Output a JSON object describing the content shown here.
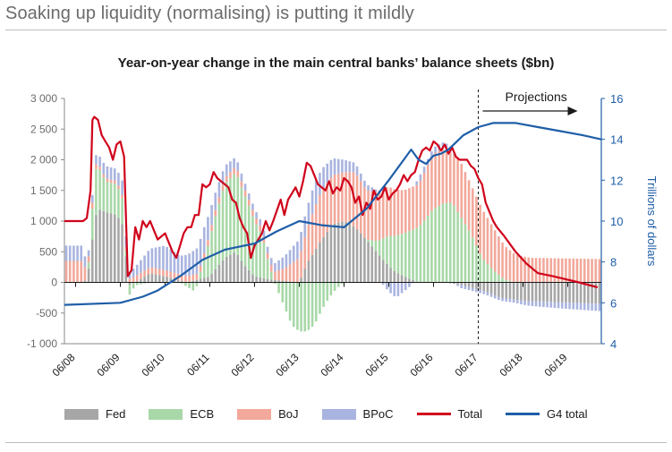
{
  "header": {
    "headline": "Soaking up liquidity (normalising) is putting it mildly"
  },
  "chart_data": {
    "type": "bar",
    "title": "Year-on-year change in the main central banks’ balance sheets ($bn)",
    "annotation": "Projections",
    "y_left": {
      "ticks": [
        -1000,
        -500,
        0,
        500,
        1000,
        1500,
        2000,
        2500,
        3000
      ],
      "tick_labels": [
        "-1 000",
        "-500",
        "0",
        "500",
        "1 000",
        "1 500",
        "2 000",
        "2 500",
        "3 000"
      ],
      "range": [
        -1000,
        3000
      ]
    },
    "y_right": {
      "label": "Trillions of dollars",
      "ticks": [
        4,
        6,
        8,
        10,
        12,
        14,
        16
      ],
      "tick_labels": [
        "4",
        "6",
        "8",
        "10",
        "12",
        "14",
        "16"
      ],
      "range": [
        4,
        16
      ]
    },
    "x_ticks": [
      "06/08",
      "06/09",
      "06/10",
      "06/11",
      "06/12",
      "06/13",
      "06/14",
      "06/15",
      "06/16",
      "06/17",
      "06/18",
      "06/19"
    ],
    "projection_start": "06/17",
    "x_range_months": [
      -3,
      141
    ],
    "colors": {
      "Fed": "#a6a6a6",
      "ECB": "#a8d8a8",
      "BoJ": "#f2a89a",
      "BPoC": "#a9b4e0",
      "Total": "#d0021b",
      "G4 total": "#1f5ea8"
    },
    "legend": [
      {
        "name": "Fed",
        "kind": "bar"
      },
      {
        "name": "ECB",
        "kind": "bar"
      },
      {
        "name": "BoJ",
        "kind": "bar"
      },
      {
        "name": "BPoC",
        "kind": "bar"
      },
      {
        "name": "Total",
        "kind": "line"
      },
      {
        "name": "G4 total",
        "kind": "line"
      }
    ],
    "series_keypoints": {
      "Fed": [
        [
          -3,
          0
        ],
        [
          2,
          0
        ],
        [
          3,
          50
        ],
        [
          4,
          400
        ],
        [
          5,
          1000
        ],
        [
          6,
          1200
        ],
        [
          8,
          1150
        ],
        [
          11,
          1100
        ],
        [
          13,
          900
        ],
        [
          14,
          -50
        ],
        [
          16,
          0
        ],
        [
          20,
          150
        ],
        [
          24,
          100
        ],
        [
          30,
          0
        ],
        [
          36,
          100
        ],
        [
          40,
          400
        ],
        [
          43,
          500
        ],
        [
          45,
          300
        ],
        [
          48,
          100
        ],
        [
          52,
          50
        ],
        [
          60,
          0
        ],
        [
          62,
          300
        ],
        [
          66,
          700
        ],
        [
          69,
          950
        ],
        [
          72,
          1000
        ],
        [
          75,
          900
        ],
        [
          78,
          700
        ],
        [
          82,
          400
        ],
        [
          85,
          200
        ],
        [
          88,
          100
        ],
        [
          92,
          0
        ],
        [
          99,
          0
        ],
        [
          104,
          -50
        ],
        [
          110,
          -150
        ],
        [
          114,
          -250
        ],
        [
          120,
          -300
        ],
        [
          141,
          -350
        ]
      ],
      "ECB": [
        [
          -3,
          0
        ],
        [
          2,
          0
        ],
        [
          3,
          0
        ],
        [
          4,
          200
        ],
        [
          5,
          800
        ],
        [
          6,
          700
        ],
        [
          8,
          500
        ],
        [
          11,
          500
        ],
        [
          13,
          400
        ],
        [
          14,
          -200
        ],
        [
          16,
          -50
        ],
        [
          20,
          0
        ],
        [
          24,
          0
        ],
        [
          28,
          0
        ],
        [
          32,
          -150
        ],
        [
          34,
          200
        ],
        [
          37,
          800
        ],
        [
          40,
          1200
        ],
        [
          43,
          1300
        ],
        [
          46,
          1100
        ],
        [
          50,
          700
        ],
        [
          52,
          200
        ],
        [
          54,
          -100
        ],
        [
          56,
          -400
        ],
        [
          58,
          -700
        ],
        [
          60,
          -800
        ],
        [
          62,
          -800
        ],
        [
          64,
          -700
        ],
        [
          66,
          -450
        ],
        [
          68,
          -250
        ],
        [
          70,
          -100
        ],
        [
          72,
          0
        ],
        [
          74,
          0
        ],
        [
          78,
          0
        ],
        [
          81,
          200
        ],
        [
          84,
          500
        ],
        [
          88,
          700
        ],
        [
          92,
          900
        ],
        [
          96,
          1200
        ],
        [
          99,
          1300
        ],
        [
          101,
          1300
        ],
        [
          103,
          1100
        ],
        [
          106,
          800
        ],
        [
          109,
          400
        ],
        [
          112,
          200
        ],
        [
          115,
          50
        ],
        [
          118,
          0
        ],
        [
          141,
          0
        ]
      ],
      "BoJ": [
        [
          -3,
          350
        ],
        [
          2,
          350
        ],
        [
          3,
          100
        ],
        [
          4,
          100
        ],
        [
          5,
          100
        ],
        [
          6,
          50
        ],
        [
          8,
          50
        ],
        [
          11,
          50
        ],
        [
          13,
          50
        ],
        [
          14,
          50
        ],
        [
          16,
          100
        ],
        [
          20,
          100
        ],
        [
          24,
          100
        ],
        [
          28,
          100
        ],
        [
          32,
          100
        ],
        [
          34,
          100
        ],
        [
          37,
          100
        ],
        [
          40,
          100
        ],
        [
          43,
          100
        ],
        [
          46,
          100
        ],
        [
          50,
          100
        ],
        [
          52,
          100
        ],
        [
          56,
          200
        ],
        [
          60,
          400
        ],
        [
          64,
          700
        ],
        [
          66,
          800
        ],
        [
          68,
          800
        ],
        [
          70,
          800
        ],
        [
          72,
          800
        ],
        [
          75,
          900
        ],
        [
          78,
          800
        ],
        [
          82,
          800
        ],
        [
          84,
          800
        ],
        [
          88,
          700
        ],
        [
          92,
          700
        ],
        [
          96,
          900
        ],
        [
          99,
          900
        ],
        [
          101,
          800
        ],
        [
          103,
          900
        ],
        [
          106,
          800
        ],
        [
          109,
          800
        ],
        [
          112,
          700
        ],
        [
          115,
          550
        ],
        [
          118,
          450
        ],
        [
          122,
          400
        ],
        [
          141,
          380
        ]
      ],
      "BPoC": [
        [
          -3,
          250
        ],
        [
          2,
          250
        ],
        [
          3,
          100
        ],
        [
          4,
          100
        ],
        [
          5,
          150
        ],
        [
          6,
          150
        ],
        [
          8,
          200
        ],
        [
          11,
          200
        ],
        [
          13,
          250
        ],
        [
          14,
          100
        ],
        [
          16,
          150
        ],
        [
          20,
          300
        ],
        [
          24,
          400
        ],
        [
          28,
          300
        ],
        [
          32,
          400
        ],
        [
          34,
          450
        ],
        [
          37,
          300
        ],
        [
          40,
          200
        ],
        [
          43,
          150
        ],
        [
          46,
          100
        ],
        [
          50,
          100
        ],
        [
          52,
          100
        ],
        [
          56,
          200
        ],
        [
          60,
          300
        ],
        [
          64,
          400
        ],
        [
          66,
          350
        ],
        [
          68,
          300
        ],
        [
          70,
          250
        ],
        [
          72,
          200
        ],
        [
          75,
          150
        ],
        [
          78,
          100
        ],
        [
          82,
          0
        ],
        [
          84,
          -150
        ],
        [
          86,
          -250
        ],
        [
          88,
          -150
        ],
        [
          90,
          -50
        ],
        [
          92,
          100
        ],
        [
          96,
          100
        ],
        [
          99,
          100
        ],
        [
          101,
          50
        ],
        [
          103,
          -50
        ],
        [
          106,
          -50
        ],
        [
          109,
          -50
        ],
        [
          112,
          -50
        ],
        [
          115,
          -50
        ],
        [
          118,
          -50
        ],
        [
          122,
          -80
        ],
        [
          130,
          -100
        ],
        [
          141,
          -120
        ]
      ],
      "Total": [
        [
          -3,
          1000
        ],
        [
          2,
          1000
        ],
        [
          3,
          1050
        ],
        [
          4,
          1500
        ],
        [
          4.5,
          2650
        ],
        [
          5,
          2700
        ],
        [
          6,
          2650
        ],
        [
          7,
          2400
        ],
        [
          8,
          2300
        ],
        [
          9,
          2200
        ],
        [
          10,
          2000
        ],
        [
          11,
          2250
        ],
        [
          12,
          2300
        ],
        [
          13,
          2050
        ],
        [
          14,
          100
        ],
        [
          15,
          200
        ],
        [
          16,
          900
        ],
        [
          17,
          700
        ],
        [
          18,
          1000
        ],
        [
          19,
          900
        ],
        [
          20,
          1000
        ],
        [
          21,
          850
        ],
        [
          22,
          700
        ],
        [
          24,
          800
        ],
        [
          26,
          500
        ],
        [
          27,
          400
        ],
        [
          28,
          600
        ],
        [
          29,
          800
        ],
        [
          30,
          900
        ],
        [
          31,
          900
        ],
        [
          32,
          1100
        ],
        [
          33,
          1100
        ],
        [
          34,
          1600
        ],
        [
          35,
          1550
        ],
        [
          36,
          1600
        ],
        [
          37,
          1800
        ],
        [
          38,
          1700
        ],
        [
          39,
          1650
        ],
        [
          40,
          1600
        ],
        [
          41,
          1550
        ],
        [
          42,
          1350
        ],
        [
          43,
          1300
        ],
        [
          44,
          1050
        ],
        [
          45,
          900
        ],
        [
          46,
          800
        ],
        [
          47,
          400
        ],
        [
          48,
          600
        ],
        [
          49,
          700
        ],
        [
          50,
          800
        ],
        [
          51,
          1000
        ],
        [
          52,
          850
        ],
        [
          53,
          1000
        ],
        [
          55,
          1350
        ],
        [
          56,
          1100
        ],
        [
          57,
          1350
        ],
        [
          58,
          1450
        ],
        [
          59,
          1550
        ],
        [
          60,
          1400
        ],
        [
          61,
          1650
        ],
        [
          62,
          1950
        ],
        [
          63,
          1900
        ],
        [
          64,
          1750
        ],
        [
          65,
          1600
        ],
        [
          66,
          1550
        ],
        [
          67,
          1500
        ],
        [
          68,
          1650
        ],
        [
          69,
          1450
        ],
        [
          70,
          1550
        ],
        [
          71,
          1500
        ],
        [
          72,
          1700
        ],
        [
          73,
          1650
        ],
        [
          74,
          1550
        ],
        [
          75,
          1300
        ],
        [
          76,
          1400
        ],
        [
          77,
          1100
        ],
        [
          78,
          1300
        ],
        [
          79,
          1200
        ],
        [
          80,
          1500
        ],
        [
          81,
          1350
        ],
        [
          82,
          1400
        ],
        [
          83,
          1550
        ],
        [
          84,
          1350
        ],
        [
          85,
          1450
        ],
        [
          86,
          1500
        ],
        [
          87,
          1600
        ],
        [
          88,
          1750
        ],
        [
          89,
          1650
        ],
        [
          90,
          1750
        ],
        [
          91,
          1800
        ],
        [
          92,
          2000
        ],
        [
          93,
          2150
        ],
        [
          94,
          2200
        ],
        [
          95,
          2150
        ],
        [
          96,
          2300
        ],
        [
          97,
          2250
        ],
        [
          98,
          2150
        ],
        [
          99,
          2250
        ],
        [
          100,
          2100
        ],
        [
          101,
          2200
        ],
        [
          102,
          2050
        ],
        [
          103,
          2000
        ],
        [
          104,
          2000
        ],
        [
          105,
          2000
        ],
        [
          106,
          1900
        ],
        [
          107,
          1850
        ],
        [
          108,
          1700
        ],
        [
          109,
          1600
        ],
        [
          110,
          1300
        ],
        [
          111,
          1150
        ],
        [
          112,
          1000
        ],
        [
          113,
          900
        ],
        [
          115,
          750
        ],
        [
          118,
          500
        ],
        [
          121,
          300
        ],
        [
          124,
          150
        ],
        [
          128,
          100
        ],
        [
          135,
          0
        ],
        [
          140,
          -80
        ]
      ],
      "G4 total": [
        [
          -3,
          5.9
        ],
        [
          12,
          6.0
        ],
        [
          18,
          6.3
        ],
        [
          22,
          6.6
        ],
        [
          28,
          7.3
        ],
        [
          34,
          8.1
        ],
        [
          40,
          8.6
        ],
        [
          48,
          8.9
        ],
        [
          54,
          9.5
        ],
        [
          60,
          10.0
        ],
        [
          66,
          9.8
        ],
        [
          72,
          9.7
        ],
        [
          78,
          10.6
        ],
        [
          84,
          12.0
        ],
        [
          88,
          13.0
        ],
        [
          90,
          13.5
        ],
        [
          92,
          13.0
        ],
        [
          94,
          12.8
        ],
        [
          96,
          13.2
        ],
        [
          98,
          13.3
        ],
        [
          100,
          13.5
        ],
        [
          104,
          14.2
        ],
        [
          108,
          14.6
        ],
        [
          112,
          14.8
        ],
        [
          118,
          14.8
        ],
        [
          124,
          14.6
        ],
        [
          130,
          14.4
        ],
        [
          136,
          14.2
        ],
        [
          141,
          14.0
        ]
      ]
    }
  }
}
